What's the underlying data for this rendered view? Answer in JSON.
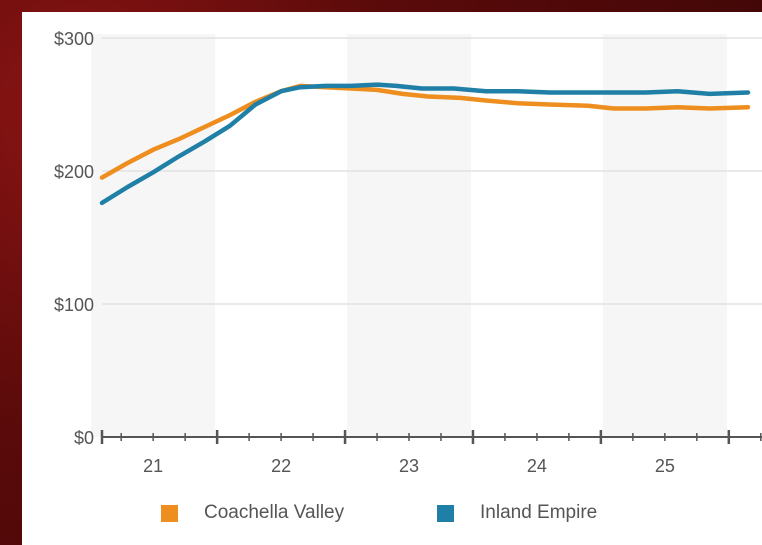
{
  "chart_data": {
    "type": "line",
    "x_ticks": [
      "21",
      "22",
      "23",
      "24",
      "25"
    ],
    "y_ticks": [
      "$0",
      "$100",
      "$200",
      "$300"
    ],
    "ylim": [
      0,
      300
    ],
    "xlim": [
      20.6,
      25.65
    ],
    "grid": true,
    "legend_position": "bottom",
    "series": [
      {
        "name": "Coachella Valley",
        "color": "#ee8e1e",
        "x": [
          20.6,
          20.8,
          21.0,
          21.2,
          21.4,
          21.6,
          21.8,
          22.0,
          22.15,
          22.35,
          22.55,
          22.75,
          22.95,
          23.15,
          23.4,
          23.6,
          23.85,
          24.1,
          24.4,
          24.6,
          24.85,
          25.1,
          25.35,
          25.65
        ],
        "values": [
          195,
          206,
          216,
          224,
          233,
          242,
          252,
          260,
          264,
          263,
          262,
          261,
          258,
          256,
          255,
          253,
          251,
          250,
          249,
          247,
          247,
          248,
          247,
          248
        ]
      },
      {
        "name": "Inland Empire",
        "color": "#1f7fa6",
        "x": [
          20.6,
          20.8,
          21.0,
          21.2,
          21.4,
          21.6,
          21.8,
          22.0,
          22.15,
          22.35,
          22.55,
          22.75,
          22.9,
          23.1,
          23.35,
          23.6,
          23.85,
          24.1,
          24.35,
          24.6,
          24.85,
          25.1,
          25.35,
          25.65
        ],
        "values": [
          176,
          188,
          199,
          211,
          222,
          234,
          250,
          260,
          263,
          264,
          264,
          265,
          264,
          262,
          262,
          260,
          260,
          259,
          259,
          259,
          259,
          260,
          258,
          259
        ]
      }
    ]
  }
}
